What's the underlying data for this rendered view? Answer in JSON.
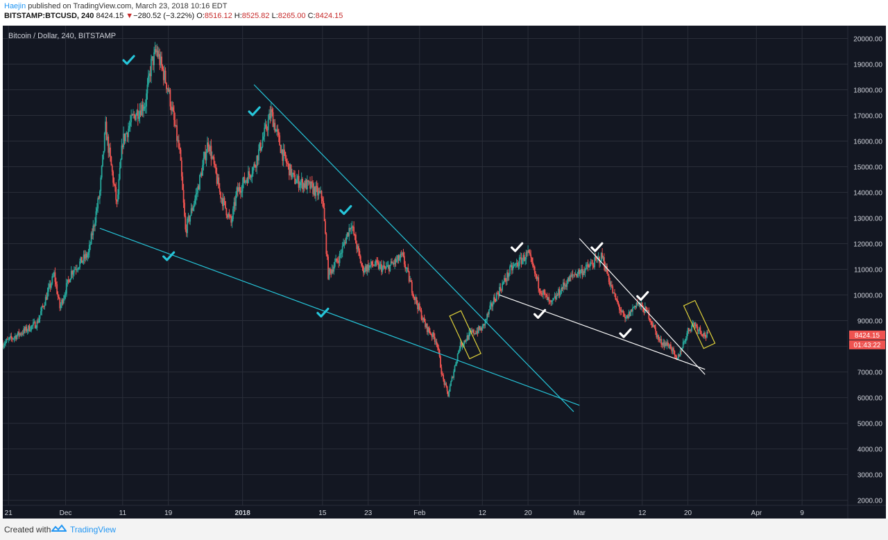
{
  "header": {
    "author": "Haejin",
    "published_text": "published on TradingView.com, March 23, 2018 10:16 EDT",
    "symbol": "BITSTAMP:BTCUSD, 240",
    "last_price": "8424.15",
    "change_arrow": "▼",
    "change": "−280.52 (−3.22%)",
    "o_label": "O:",
    "o_value": "8516.12",
    "h_label": "H:",
    "h_value": "8525.82",
    "l_label": "L:",
    "l_value": "8265.00",
    "c_label": "C:",
    "c_value": "8424.15"
  },
  "footer": {
    "created_with": "Created with",
    "brand": "TradingView"
  },
  "chart_data": {
    "type": "candlestick",
    "legend": "Bitcoin / Dollar, 240, BITSTAMP",
    "price_label": "8424.15",
    "countdown_label": "01:43:22",
    "y_axis": {
      "min": 1800,
      "max": 20500,
      "ticks": [
        2000,
        3000,
        4000,
        5000,
        6000,
        7000,
        8000,
        9000,
        10000,
        11000,
        12000,
        13000,
        14000,
        15000,
        16000,
        17000,
        18000,
        19000,
        20000
      ],
      "tick_labels": [
        "2000.00",
        "3000.00",
        "4000.00",
        "5000.00",
        "6000.00",
        "7000.00",
        "8000.00",
        "9000.00",
        "10000.00",
        "11000.00",
        "12000.00",
        "13000.00",
        "14000.00",
        "15000.00",
        "16000.00",
        "17000.00",
        "18000.00",
        "19000.00",
        "20000.00"
      ]
    },
    "x_axis": {
      "start": "2017-11-20",
      "end": "2018-04-17",
      "ticks": [
        "2017-11-21",
        "2017-12-01",
        "2017-12-11",
        "2017-12-19",
        "2018-01-01",
        "2018-01-15",
        "2018-01-23",
        "2018-02-01",
        "2018-02-12",
        "2018-02-20",
        "2018-03-01",
        "2018-03-12",
        "2018-03-20",
        "2018-04-01",
        "2018-04-09"
      ],
      "tick_labels": [
        "21",
        "Dec",
        "11",
        "19",
        "2018",
        "15",
        "23",
        "Feb",
        "12",
        "20",
        "Mar",
        "12",
        "20",
        "Apr",
        "9"
      ],
      "bold_labels": [
        "2018"
      ]
    },
    "price_path": [
      [
        "2017-11-20",
        8100
      ],
      [
        "2017-11-26",
        8900
      ],
      [
        "2017-11-29",
        10800
      ],
      [
        "2017-11-30",
        9500
      ],
      [
        "2017-12-02",
        10900
      ],
      [
        "2017-12-05",
        11600
      ],
      [
        "2017-12-07",
        14000
      ],
      [
        "2017-12-08",
        16500
      ],
      [
        "2017-12-10",
        13500
      ],
      [
        "2017-12-11",
        16000
      ],
      [
        "2017-12-13",
        17000
      ],
      [
        "2017-12-15",
        17500
      ],
      [
        "2017-12-16",
        19000
      ],
      [
        "2017-12-17",
        19500
      ],
      [
        "2017-12-19",
        18000
      ],
      [
        "2017-12-21",
        15500
      ],
      [
        "2017-12-22",
        12500
      ],
      [
        "2017-12-24",
        14000
      ],
      [
        "2017-12-26",
        16000
      ],
      [
        "2017-12-28",
        14000
      ],
      [
        "2017-12-30",
        12800
      ],
      [
        "2017-12-31",
        14000
      ],
      [
        "2018-01-03",
        15000
      ],
      [
        "2018-01-06",
        17100
      ],
      [
        "2018-01-08",
        15500
      ],
      [
        "2018-01-10",
        14500
      ],
      [
        "2018-01-13",
        14200
      ],
      [
        "2018-01-15",
        13800
      ],
      [
        "2018-01-16",
        10800
      ],
      [
        "2018-01-18",
        11500
      ],
      [
        "2018-01-20",
        12800
      ],
      [
        "2018-01-22",
        11000
      ],
      [
        "2018-01-24",
        11200
      ],
      [
        "2018-01-26",
        11000
      ],
      [
        "2018-01-29",
        11500
      ],
      [
        "2018-01-31",
        10000
      ],
      [
        "2018-02-02",
        8800
      ],
      [
        "2018-02-04",
        8200
      ],
      [
        "2018-02-05",
        6800
      ],
      [
        "2018-02-06",
        6100
      ],
      [
        "2018-02-08",
        8000
      ],
      [
        "2018-02-10",
        8500
      ],
      [
        "2018-02-12",
        8700
      ],
      [
        "2018-02-14",
        9800
      ],
      [
        "2018-02-17",
        11000
      ],
      [
        "2018-02-20",
        11600
      ],
      [
        "2018-02-22",
        10300
      ],
      [
        "2018-02-24",
        9600
      ],
      [
        "2018-02-26",
        10300
      ],
      [
        "2018-02-28",
        10800
      ],
      [
        "2018-03-02",
        11000
      ],
      [
        "2018-03-05",
        11500
      ],
      [
        "2018-03-07",
        10000
      ],
      [
        "2018-03-09",
        9000
      ],
      [
        "2018-03-11",
        9700
      ],
      [
        "2018-03-13",
        9300
      ],
      [
        "2018-03-15",
        8200
      ],
      [
        "2018-03-17",
        8000
      ],
      [
        "2018-03-18",
        7400
      ],
      [
        "2018-03-20",
        8600
      ],
      [
        "2018-03-21",
        8900
      ],
      [
        "2018-03-23",
        8424
      ]
    ],
    "annotations": {
      "trend_lines": [
        {
          "color": "#26c6da",
          "from": [
            "2017-12-07",
            12600
          ],
          "to": [
            "2018-03-01",
            5700
          ]
        },
        {
          "color": "#26c6da",
          "from": [
            "2018-01-03",
            18200
          ],
          "to": [
            "2018-02-28",
            5450
          ]
        },
        {
          "color": "#ffffff",
          "from": [
            "2018-02-15",
            10000
          ],
          "to": [
            "2018-03-23",
            7100
          ]
        },
        {
          "color": "#ffffff",
          "from": [
            "2018-03-01",
            12200
          ],
          "to": [
            "2018-03-23",
            6900
          ]
        }
      ],
      "boxes": [
        {
          "color": "#e0d23a",
          "center": [
            "2018-02-09",
            8450
          ]
        },
        {
          "color": "#e0d23a",
          "center": [
            "2018-03-22",
            8850
          ]
        }
      ],
      "checkmarks_cyan": [
        [
          "2017-12-12",
          19150
        ],
        [
          "2017-12-19",
          11500
        ],
        [
          "2018-01-03",
          17150
        ],
        [
          "2018-01-15",
          9300
        ],
        [
          "2018-01-19",
          13300
        ]
      ],
      "checkmarks_white": [
        [
          "2018-02-18",
          11850
        ],
        [
          "2018-02-22",
          9250
        ],
        [
          "2018-03-04",
          11850
        ],
        [
          "2018-03-09",
          8500
        ],
        [
          "2018-03-12",
          9950
        ]
      ]
    },
    "colors": {
      "background": "#131722",
      "grid": "#2a2e39",
      "up": "#26a69a",
      "down": "#ef5350",
      "axis_text": "#d1d4dc",
      "price_tag": "#ef5350"
    }
  }
}
